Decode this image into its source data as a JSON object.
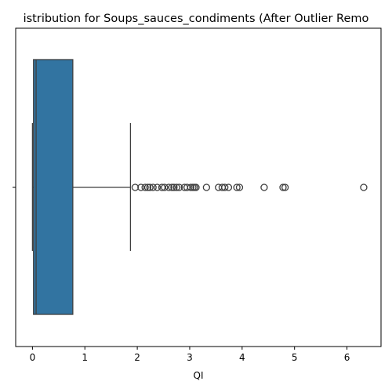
{
  "chart_data": {
    "type": "box",
    "title": "istribution for Soups_sauces_condiments (After Outlier Remo",
    "xlabel": "QI",
    "ylabel": "",
    "xlim": [
      -0.32,
      6.65
    ],
    "xticks": [
      0,
      1,
      2,
      3,
      4,
      5,
      6
    ],
    "orientation": "horizontal",
    "grid": false,
    "box": {
      "whisker_low": 0.0,
      "q1": 0.02,
      "median": 0.07,
      "q3": 0.77,
      "whisker_high": 1.87
    },
    "outliers": [
      1.96,
      2.07,
      2.15,
      2.2,
      2.24,
      2.3,
      2.38,
      2.47,
      2.52,
      2.6,
      2.66,
      2.7,
      2.75,
      2.8,
      2.9,
      2.95,
      3.02,
      3.06,
      3.09,
      3.12,
      3.32,
      3.55,
      3.62,
      3.67,
      3.74,
      3.9,
      3.95,
      4.42,
      4.78,
      4.82,
      6.32
    ],
    "colors": {
      "box_fill": "#3274a1",
      "line": "#3f3f3f",
      "axes": "#000000"
    }
  }
}
